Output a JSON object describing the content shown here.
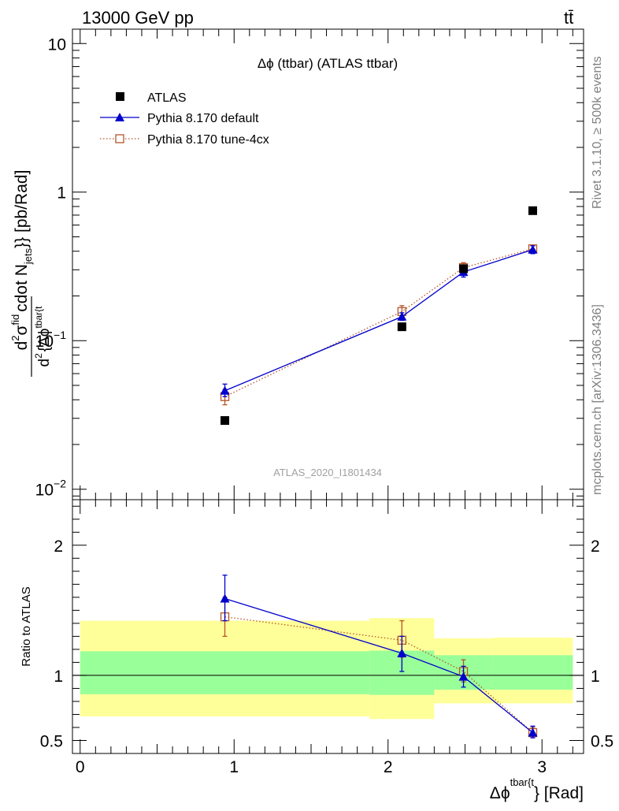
{
  "header": {
    "energy_label": "13000 GeV pp",
    "process_label": "tt̄"
  },
  "side_labels": {
    "rivet": "Rivet 3.1.10, ≥ 500k events",
    "mcplots": "mcplots.cern.ch [arXiv:1306.3436]"
  },
  "chart_data": [
    {
      "type": "scatter",
      "panel": "main",
      "title": "Δϕ (ttbar) (ATLAS ttbar)",
      "watermark": "ATLAS_2020_I1801434",
      "ylabel_parts": {
        "d_num": "d",
        "sup2_num": "2",
        "sigma": "σ",
        "sup_fid": "fid",
        "d_den": "d",
        "sup2_den": "2",
        "brace_delta_phi": "{Δϕ",
        "sup_tbar": "tbar{t",
        "rest": "cdot N",
        "sub_jets": "jets",
        "tail": "}} [pb/Rad]"
      },
      "yscale": "log",
      "ylim": [
        0.0085,
        12.5
      ],
      "xlim": [
        -0.05,
        3.27
      ],
      "yticks": [
        {
          "value": 0.01,
          "base": "10",
          "exp": "−2"
        },
        {
          "value": 0.1,
          "base": "10",
          "exp": "−1"
        },
        {
          "value": 1,
          "base": "1",
          "exp": ""
        },
        {
          "value": 10,
          "base": "10",
          "exp": ""
        }
      ],
      "legend_position": "top-left",
      "series": [
        {
          "name": "ATLAS",
          "marker": "filled-square",
          "color": "#000000",
          "points": [
            {
              "x": 0.94,
              "y": 0.029
            },
            {
              "x": 2.09,
              "y": 0.124
            },
            {
              "x": 2.49,
              "y": 0.305
            },
            {
              "x": 2.94,
              "y": 0.75
            }
          ]
        },
        {
          "name": "Pythia 8.170 default",
          "marker": "filled-triangle",
          "color": "#0000cc",
          "line": "solid",
          "points": [
            {
              "x": 0.94,
              "y": 0.046,
              "ylo": 0.042,
              "yhi": 0.051
            },
            {
              "x": 2.09,
              "y": 0.145,
              "ylo": 0.137,
              "yhi": 0.154
            },
            {
              "x": 2.49,
              "y": 0.29,
              "ylo": 0.268,
              "yhi": 0.313
            },
            {
              "x": 2.94,
              "y": 0.41,
              "ylo": 0.385,
              "yhi": 0.435
            }
          ]
        },
        {
          "name": "Pythia 8.170 tune-4cx",
          "marker": "open-square",
          "color": "#b5542a",
          "line": "dotted",
          "points": [
            {
              "x": 0.94,
              "y": 0.042,
              "ylo": 0.037,
              "yhi": 0.047
            },
            {
              "x": 2.09,
              "y": 0.157,
              "ylo": 0.145,
              "yhi": 0.172
            },
            {
              "x": 2.49,
              "y": 0.31,
              "ylo": 0.29,
              "yhi": 0.335
            },
            {
              "x": 2.94,
              "y": 0.415,
              "ylo": 0.395,
              "yhi": 0.435
            }
          ]
        }
      ]
    },
    {
      "type": "scatter",
      "panel": "ratio",
      "ylabel": "Ratio to ATLAS",
      "xlabel_parts": {
        "main": "Δϕ",
        "sup": "tbar{t",
        "tail": "} [Rad]"
      },
      "xlim": [
        -0.05,
        3.27
      ],
      "ylim": [
        0.4,
        2.35
      ],
      "yticks": [
        0.5,
        1,
        2
      ],
      "xticks": [
        0,
        1,
        2,
        3
      ],
      "reference_line": 1,
      "uncertainty_bands": [
        {
          "x0": 0.0,
          "x1": 1.88,
          "outer": [
            0.685,
            1.42
          ],
          "inner": [
            0.855,
            1.185
          ]
        },
        {
          "x0": 1.88,
          "x1": 2.3,
          "outer": [
            0.665,
            1.44
          ],
          "inner": [
            0.85,
            1.19
          ]
        },
        {
          "x0": 2.3,
          "x1": 2.68,
          "outer": [
            0.785,
            1.285
          ],
          "inner": [
            0.89,
            1.155
          ]
        },
        {
          "x0": 2.68,
          "x1": 3.2,
          "outer": [
            0.785,
            1.29
          ],
          "inner": [
            0.89,
            1.155
          ]
        }
      ],
      "series": [
        {
          "name": "Pythia 8.170 default",
          "marker": "filled-triangle",
          "color": "#0000cc",
          "line": "solid",
          "points": [
            {
              "x": 0.94,
              "y": 1.59,
              "ylo": 1.42,
              "yhi": 1.77
            },
            {
              "x": 2.09,
              "y": 1.17,
              "ylo": 1.03,
              "yhi": 1.3
            },
            {
              "x": 2.49,
              "y": 0.99,
              "ylo": 0.91,
              "yhi": 1.07
            },
            {
              "x": 2.94,
              "y": 0.56,
              "ylo": 0.52,
              "yhi": 0.61
            }
          ]
        },
        {
          "name": "Pythia 8.170 tune-4cx",
          "marker": "open-square",
          "color": "#b5542a",
          "line": "dotted",
          "points": [
            {
              "x": 0.94,
              "y": 1.45,
              "ylo": 1.3,
              "yhi": 1.6
            },
            {
              "x": 2.09,
              "y": 1.27,
              "ylo": 1.14,
              "yhi": 1.42
            },
            {
              "x": 2.49,
              "y": 1.03,
              "ylo": 0.95,
              "yhi": 1.12
            },
            {
              "x": 2.94,
              "y": 0.56,
              "ylo": 0.53,
              "yhi": 0.6
            }
          ]
        }
      ]
    }
  ]
}
